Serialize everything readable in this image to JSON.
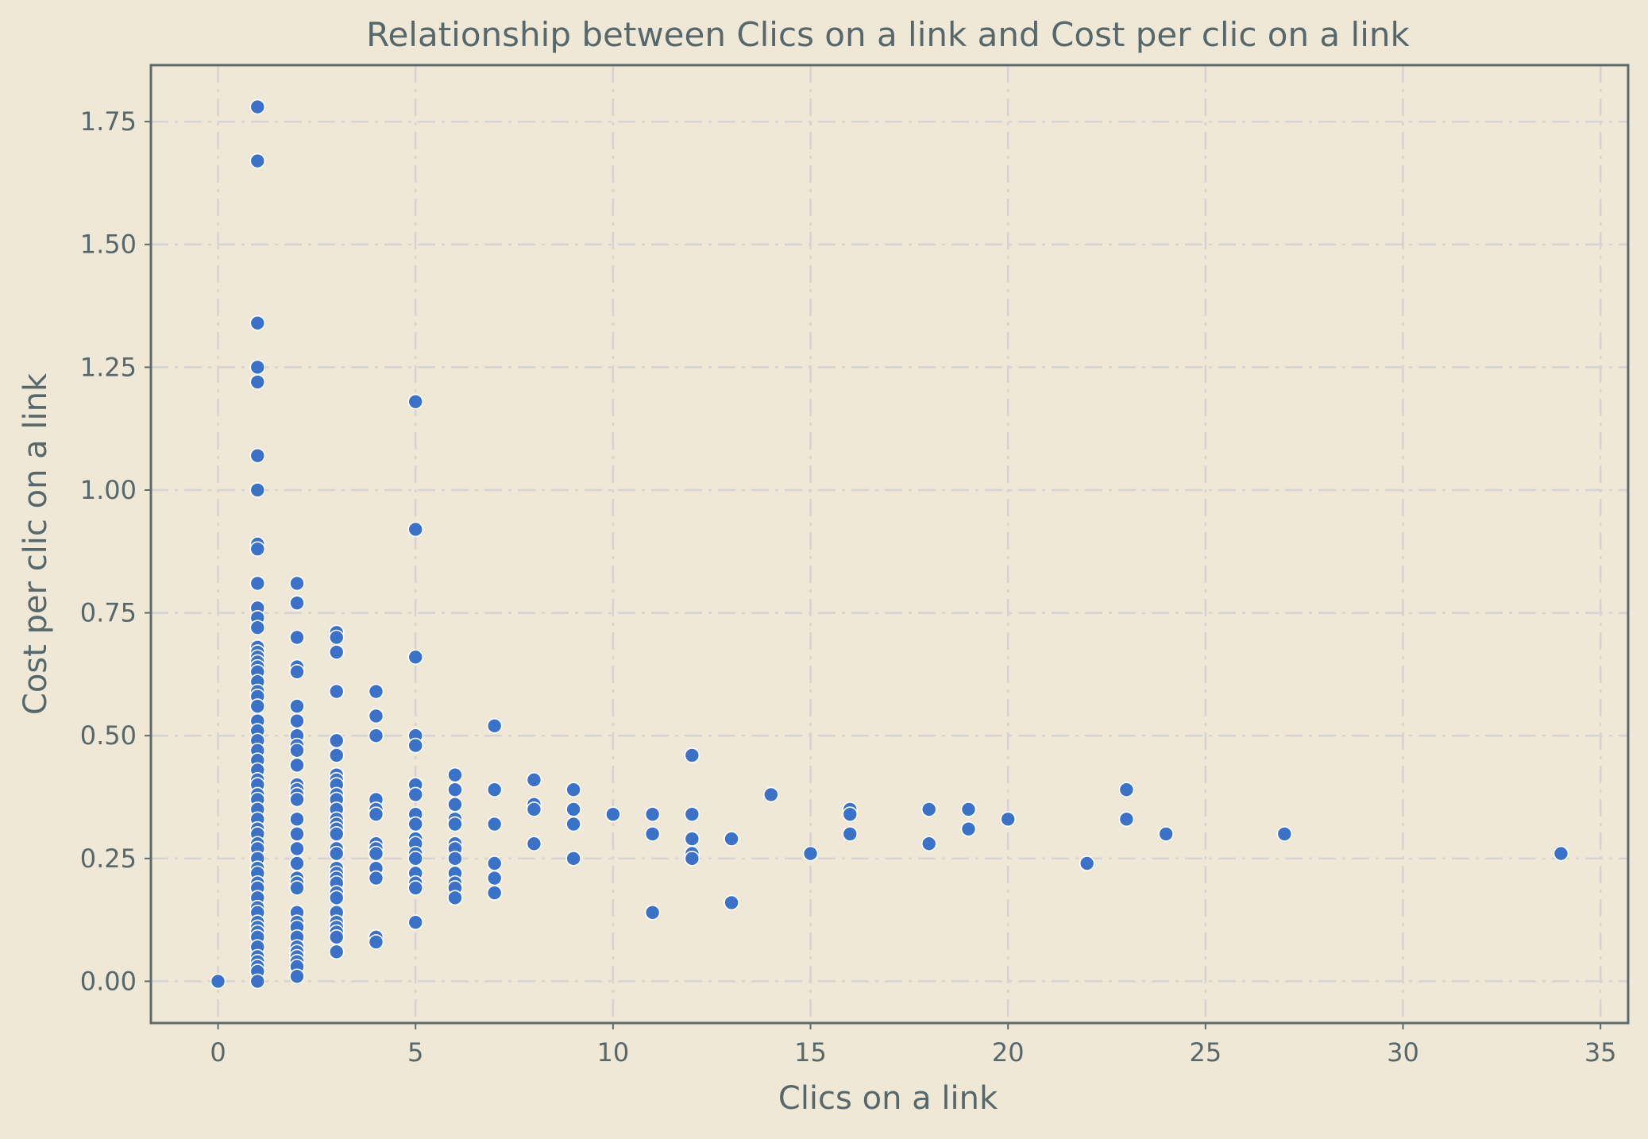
{
  "chart_data": {
    "type": "scatter",
    "title": "Relationship between Clics on a link and Cost per clic on a link",
    "xlabel": "Clics on a link",
    "ylabel": "Cost per clic on a link",
    "xlim": [
      -1.7,
      35.7
    ],
    "ylim": [
      -0.085,
      1.865
    ],
    "xticks": [
      0,
      5,
      10,
      15,
      20,
      25,
      30,
      35
    ],
    "xtick_labels": [
      "0",
      "5",
      "10",
      "15",
      "20",
      "25",
      "30",
      "35"
    ],
    "yticks": [
      0,
      0.25,
      0.5,
      0.75,
      1.0,
      1.25,
      1.5,
      1.75
    ],
    "ytick_labels": [
      "0.00",
      "0.25",
      "0.50",
      "0.75",
      "1.00",
      "1.25",
      "1.50",
      "1.75"
    ],
    "grid": true,
    "colors": {
      "background": "#efe8d6",
      "point": "#3a72c9",
      "text": "#56686b",
      "grid": "#d6d3d2"
    },
    "points": [
      [
        0,
        0.0
      ],
      [
        1,
        1.78
      ],
      [
        1,
        1.67
      ],
      [
        1,
        1.34
      ],
      [
        1,
        1.25
      ],
      [
        1,
        1.22
      ],
      [
        1,
        1.07
      ],
      [
        1,
        1.0
      ],
      [
        1,
        0.89
      ],
      [
        1,
        0.88
      ],
      [
        1,
        0.81
      ],
      [
        1,
        0.76
      ],
      [
        1,
        0.74
      ],
      [
        1,
        0.72
      ],
      [
        1,
        0.68
      ],
      [
        1,
        0.67
      ],
      [
        1,
        0.66
      ],
      [
        1,
        0.65
      ],
      [
        1,
        0.64
      ],
      [
        1,
        0.63
      ],
      [
        1,
        0.61
      ],
      [
        1,
        0.59
      ],
      [
        1,
        0.58
      ],
      [
        1,
        0.56
      ],
      [
        1,
        0.53
      ],
      [
        1,
        0.51
      ],
      [
        1,
        0.49
      ],
      [
        1,
        0.47
      ],
      [
        1,
        0.45
      ],
      [
        1,
        0.43
      ],
      [
        1,
        0.41
      ],
      [
        1,
        0.4
      ],
      [
        1,
        0.38
      ],
      [
        1,
        0.37
      ],
      [
        1,
        0.35
      ],
      [
        1,
        0.33
      ],
      [
        1,
        0.31
      ],
      [
        1,
        0.3
      ],
      [
        1,
        0.28
      ],
      [
        1,
        0.27
      ],
      [
        1,
        0.25
      ],
      [
        1,
        0.23
      ],
      [
        1,
        0.22
      ],
      [
        1,
        0.2
      ],
      [
        1,
        0.19
      ],
      [
        1,
        0.17
      ],
      [
        1,
        0.15
      ],
      [
        1,
        0.14
      ],
      [
        1,
        0.12
      ],
      [
        1,
        0.11
      ],
      [
        1,
        0.1
      ],
      [
        1,
        0.09
      ],
      [
        1,
        0.07
      ],
      [
        1,
        0.05
      ],
      [
        1,
        0.04
      ],
      [
        1,
        0.03
      ],
      [
        1,
        0.02
      ],
      [
        1,
        0.0
      ],
      [
        2,
        0.81
      ],
      [
        2,
        0.77
      ],
      [
        2,
        0.7
      ],
      [
        2,
        0.64
      ],
      [
        2,
        0.63
      ],
      [
        2,
        0.56
      ],
      [
        2,
        0.53
      ],
      [
        2,
        0.5
      ],
      [
        2,
        0.48
      ],
      [
        2,
        0.47
      ],
      [
        2,
        0.44
      ],
      [
        2,
        0.4
      ],
      [
        2,
        0.39
      ],
      [
        2,
        0.38
      ],
      [
        2,
        0.37
      ],
      [
        2,
        0.33
      ],
      [
        2,
        0.3
      ],
      [
        2,
        0.27
      ],
      [
        2,
        0.24
      ],
      [
        2,
        0.21
      ],
      [
        2,
        0.2
      ],
      [
        2,
        0.19
      ],
      [
        2,
        0.14
      ],
      [
        2,
        0.12
      ],
      [
        2,
        0.11
      ],
      [
        2,
        0.09
      ],
      [
        2,
        0.07
      ],
      [
        2,
        0.06
      ],
      [
        2,
        0.05
      ],
      [
        2,
        0.04
      ],
      [
        2,
        0.03
      ],
      [
        2,
        0.01
      ],
      [
        3,
        0.71
      ],
      [
        3,
        0.7
      ],
      [
        3,
        0.67
      ],
      [
        3,
        0.59
      ],
      [
        3,
        0.49
      ],
      [
        3,
        0.46
      ],
      [
        3,
        0.42
      ],
      [
        3,
        0.41
      ],
      [
        3,
        0.4
      ],
      [
        3,
        0.38
      ],
      [
        3,
        0.37
      ],
      [
        3,
        0.35
      ],
      [
        3,
        0.33
      ],
      [
        3,
        0.32
      ],
      [
        3,
        0.31
      ],
      [
        3,
        0.3
      ],
      [
        3,
        0.27
      ],
      [
        3,
        0.26
      ],
      [
        3,
        0.23
      ],
      [
        3,
        0.22
      ],
      [
        3,
        0.21
      ],
      [
        3,
        0.2
      ],
      [
        3,
        0.18
      ],
      [
        3,
        0.17
      ],
      [
        3,
        0.14
      ],
      [
        3,
        0.12
      ],
      [
        3,
        0.11
      ],
      [
        3,
        0.1
      ],
      [
        3,
        0.09
      ],
      [
        3,
        0.06
      ],
      [
        4,
        0.59
      ],
      [
        4,
        0.54
      ],
      [
        4,
        0.5
      ],
      [
        4,
        0.37
      ],
      [
        4,
        0.35
      ],
      [
        4,
        0.34
      ],
      [
        4,
        0.28
      ],
      [
        4,
        0.27
      ],
      [
        4,
        0.26
      ],
      [
        4,
        0.23
      ],
      [
        4,
        0.21
      ],
      [
        4,
        0.09
      ],
      [
        4,
        0.08
      ],
      [
        5,
        1.18
      ],
      [
        5,
        0.92
      ],
      [
        5,
        0.66
      ],
      [
        5,
        0.5
      ],
      [
        5,
        0.48
      ],
      [
        5,
        0.4
      ],
      [
        5,
        0.38
      ],
      [
        5,
        0.34
      ],
      [
        5,
        0.32
      ],
      [
        5,
        0.29
      ],
      [
        5,
        0.28
      ],
      [
        5,
        0.26
      ],
      [
        5,
        0.25
      ],
      [
        5,
        0.22
      ],
      [
        5,
        0.2
      ],
      [
        5,
        0.19
      ],
      [
        5,
        0.12
      ],
      [
        6,
        0.42
      ],
      [
        6,
        0.39
      ],
      [
        6,
        0.36
      ],
      [
        6,
        0.33
      ],
      [
        6,
        0.32
      ],
      [
        6,
        0.28
      ],
      [
        6,
        0.27
      ],
      [
        6,
        0.25
      ],
      [
        6,
        0.22
      ],
      [
        6,
        0.2
      ],
      [
        6,
        0.19
      ],
      [
        6,
        0.17
      ],
      [
        7,
        0.52
      ],
      [
        7,
        0.39
      ],
      [
        7,
        0.32
      ],
      [
        7,
        0.24
      ],
      [
        7,
        0.21
      ],
      [
        7,
        0.18
      ],
      [
        8,
        0.41
      ],
      [
        8,
        0.36
      ],
      [
        8,
        0.35
      ],
      [
        8,
        0.28
      ],
      [
        9,
        0.39
      ],
      [
        9,
        0.35
      ],
      [
        9,
        0.32
      ],
      [
        9,
        0.25
      ],
      [
        10,
        0.34
      ],
      [
        11,
        0.34
      ],
      [
        11,
        0.3
      ],
      [
        11,
        0.14
      ],
      [
        12,
        0.46
      ],
      [
        12,
        0.34
      ],
      [
        12,
        0.29
      ],
      [
        12,
        0.26
      ],
      [
        12,
        0.25
      ],
      [
        13,
        0.29
      ],
      [
        13,
        0.16
      ],
      [
        14,
        0.38
      ],
      [
        15,
        0.26
      ],
      [
        16,
        0.35
      ],
      [
        16,
        0.34
      ],
      [
        16,
        0.3
      ],
      [
        18,
        0.35
      ],
      [
        18,
        0.28
      ],
      [
        19,
        0.35
      ],
      [
        19,
        0.31
      ],
      [
        20,
        0.33
      ],
      [
        22,
        0.24
      ],
      [
        23,
        0.39
      ],
      [
        23,
        0.33
      ],
      [
        24,
        0.3
      ],
      [
        27,
        0.3
      ],
      [
        34,
        0.26
      ]
    ]
  }
}
